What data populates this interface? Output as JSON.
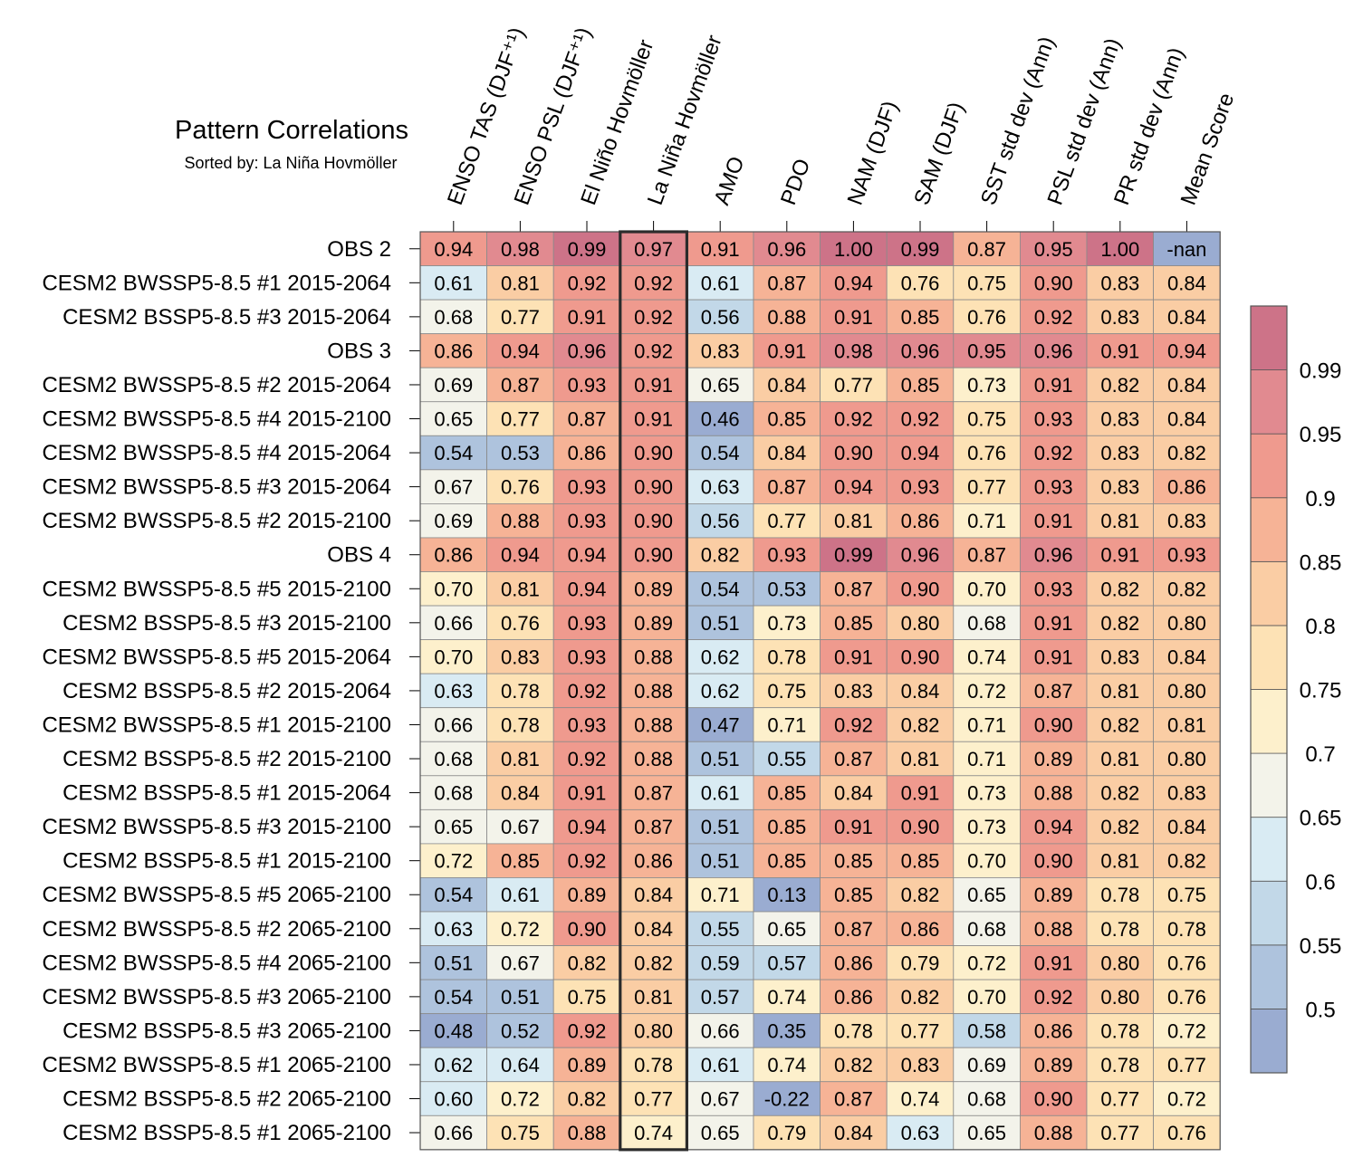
{
  "chart_data": {
    "type": "heatmap",
    "title": "Pattern Correlations",
    "subtitle": "Sorted by: La Niña Hovmöller",
    "highlighted_column": "La Niña Hovmöller",
    "columns": [
      "ENSO TAS (DJF⁺¹)",
      "ENSO PSL (DJF⁺¹)",
      "El Niño Hovmöller",
      "La Niña Hovmöller",
      "AMO",
      "PDO",
      "NAM (DJF)",
      "SAM (DJF)",
      "SST std dev (Ann)",
      "PSL std dev (Ann)",
      "PR std dev (Ann)",
      "Mean Score"
    ],
    "rows": [
      {
        "label": "OBS 2",
        "values": [
          "0.94",
          "0.98",
          "0.99",
          "0.97",
          "0.91",
          "0.96",
          "1.00",
          "0.99",
          "0.87",
          "0.95",
          "1.00",
          "-nan"
        ]
      },
      {
        "label": "CESM2 BWSSP5-8.5 #1 2015-2064",
        "values": [
          "0.61",
          "0.81",
          "0.92",
          "0.92",
          "0.61",
          "0.87",
          "0.94",
          "0.76",
          "0.75",
          "0.90",
          "0.83",
          "0.84"
        ]
      },
      {
        "label": "CESM2 BSSP5-8.5 #3 2015-2064",
        "values": [
          "0.68",
          "0.77",
          "0.91",
          "0.92",
          "0.56",
          "0.88",
          "0.91",
          "0.85",
          "0.76",
          "0.92",
          "0.83",
          "0.84"
        ]
      },
      {
        "label": "OBS 3",
        "values": [
          "0.86",
          "0.94",
          "0.96",
          "0.92",
          "0.83",
          "0.91",
          "0.98",
          "0.96",
          "0.95",
          "0.96",
          "0.91",
          "0.94"
        ]
      },
      {
        "label": "CESM2 BWSSP5-8.5 #2 2015-2064",
        "values": [
          "0.69",
          "0.87",
          "0.93",
          "0.91",
          "0.65",
          "0.84",
          "0.77",
          "0.85",
          "0.73",
          "0.91",
          "0.82",
          "0.84"
        ]
      },
      {
        "label": "CESM2 BWSSP5-8.5 #4 2015-2100",
        "values": [
          "0.65",
          "0.77",
          "0.87",
          "0.91",
          "0.46",
          "0.85",
          "0.92",
          "0.92",
          "0.75",
          "0.93",
          "0.83",
          "0.84"
        ]
      },
      {
        "label": "CESM2 BWSSP5-8.5 #4 2015-2064",
        "values": [
          "0.54",
          "0.53",
          "0.86",
          "0.90",
          "0.54",
          "0.84",
          "0.90",
          "0.94",
          "0.76",
          "0.92",
          "0.83",
          "0.82"
        ]
      },
      {
        "label": "CESM2 BWSSP5-8.5 #3 2015-2064",
        "values": [
          "0.67",
          "0.76",
          "0.93",
          "0.90",
          "0.63",
          "0.87",
          "0.94",
          "0.93",
          "0.77",
          "0.93",
          "0.83",
          "0.86"
        ]
      },
      {
        "label": "CESM2 BWSSP5-8.5 #2 2015-2100",
        "values": [
          "0.69",
          "0.88",
          "0.93",
          "0.90",
          "0.56",
          "0.77",
          "0.81",
          "0.86",
          "0.71",
          "0.91",
          "0.81",
          "0.83"
        ]
      },
      {
        "label": "OBS 4",
        "values": [
          "0.86",
          "0.94",
          "0.94",
          "0.90",
          "0.82",
          "0.93",
          "0.99",
          "0.96",
          "0.87",
          "0.96",
          "0.91",
          "0.93"
        ]
      },
      {
        "label": "CESM2 BWSSP5-8.5 #5 2015-2100",
        "values": [
          "0.70",
          "0.81",
          "0.94",
          "0.89",
          "0.54",
          "0.53",
          "0.87",
          "0.90",
          "0.70",
          "0.93",
          "0.82",
          "0.82"
        ]
      },
      {
        "label": "CESM2 BSSP5-8.5 #3 2015-2100",
        "values": [
          "0.66",
          "0.76",
          "0.93",
          "0.89",
          "0.51",
          "0.73",
          "0.85",
          "0.80",
          "0.68",
          "0.91",
          "0.82",
          "0.80"
        ]
      },
      {
        "label": "CESM2 BWSSP5-8.5 #5 2015-2064",
        "values": [
          "0.70",
          "0.83",
          "0.93",
          "0.88",
          "0.62",
          "0.78",
          "0.91",
          "0.90",
          "0.74",
          "0.91",
          "0.83",
          "0.84"
        ]
      },
      {
        "label": "CESM2 BSSP5-8.5 #2 2015-2064",
        "values": [
          "0.63",
          "0.78",
          "0.92",
          "0.88",
          "0.62",
          "0.75",
          "0.83",
          "0.84",
          "0.72",
          "0.87",
          "0.81",
          "0.80"
        ]
      },
      {
        "label": "CESM2 BWSSP5-8.5 #1 2015-2100",
        "values": [
          "0.66",
          "0.78",
          "0.93",
          "0.88",
          "0.47",
          "0.71",
          "0.92",
          "0.82",
          "0.71",
          "0.90",
          "0.82",
          "0.81"
        ]
      },
      {
        "label": "CESM2 BSSP5-8.5 #2 2015-2100",
        "values": [
          "0.68",
          "0.81",
          "0.92",
          "0.88",
          "0.51",
          "0.55",
          "0.87",
          "0.81",
          "0.71",
          "0.89",
          "0.81",
          "0.80"
        ]
      },
      {
        "label": "CESM2 BSSP5-8.5 #1 2015-2064",
        "values": [
          "0.68",
          "0.84",
          "0.91",
          "0.87",
          "0.61",
          "0.85",
          "0.84",
          "0.91",
          "0.73",
          "0.88",
          "0.82",
          "0.83"
        ]
      },
      {
        "label": "CESM2 BWSSP5-8.5 #3 2015-2100",
        "values": [
          "0.65",
          "0.67",
          "0.94",
          "0.87",
          "0.51",
          "0.85",
          "0.91",
          "0.90",
          "0.73",
          "0.94",
          "0.82",
          "0.84"
        ]
      },
      {
        "label": "CESM2 BSSP5-8.5 #1 2015-2100",
        "values": [
          "0.72",
          "0.85",
          "0.92",
          "0.86",
          "0.51",
          "0.85",
          "0.85",
          "0.85",
          "0.70",
          "0.90",
          "0.81",
          "0.82"
        ]
      },
      {
        "label": "CESM2 BWSSP5-8.5 #5 2065-2100",
        "values": [
          "0.54",
          "0.61",
          "0.89",
          "0.84",
          "0.71",
          "0.13",
          "0.85",
          "0.82",
          "0.65",
          "0.89",
          "0.78",
          "0.75"
        ]
      },
      {
        "label": "CESM2 BWSSP5-8.5 #2 2065-2100",
        "values": [
          "0.63",
          "0.72",
          "0.90",
          "0.84",
          "0.55",
          "0.65",
          "0.87",
          "0.86",
          "0.68",
          "0.88",
          "0.78",
          "0.78"
        ]
      },
      {
        "label": "CESM2 BWSSP5-8.5 #4 2065-2100",
        "values": [
          "0.51",
          "0.67",
          "0.82",
          "0.82",
          "0.59",
          "0.57",
          "0.86",
          "0.79",
          "0.72",
          "0.91",
          "0.80",
          "0.76"
        ]
      },
      {
        "label": "CESM2 BWSSP5-8.5 #3 2065-2100",
        "values": [
          "0.54",
          "0.51",
          "0.75",
          "0.81",
          "0.57",
          "0.74",
          "0.86",
          "0.82",
          "0.70",
          "0.92",
          "0.80",
          "0.76"
        ]
      },
      {
        "label": "CESM2 BSSP5-8.5 #3 2065-2100",
        "values": [
          "0.48",
          "0.52",
          "0.92",
          "0.80",
          "0.66",
          "0.35",
          "0.78",
          "0.77",
          "0.58",
          "0.86",
          "0.78",
          "0.72"
        ]
      },
      {
        "label": "CESM2 BWSSP5-8.5 #1 2065-2100",
        "values": [
          "0.62",
          "0.64",
          "0.89",
          "0.78",
          "0.61",
          "0.74",
          "0.82",
          "0.83",
          "0.69",
          "0.89",
          "0.78",
          "0.77"
        ]
      },
      {
        "label": "CESM2 BSSP5-8.5 #2 2065-2100",
        "values": [
          "0.60",
          "0.72",
          "0.82",
          "0.77",
          "0.67",
          "-0.22",
          "0.87",
          "0.74",
          "0.68",
          "0.90",
          "0.77",
          "0.72"
        ]
      },
      {
        "label": "CESM2 BSSP5-8.5 #1 2065-2100",
        "values": [
          "0.66",
          "0.75",
          "0.88",
          "0.74",
          "0.65",
          "0.79",
          "0.84",
          "0.63",
          "0.65",
          "0.88",
          "0.77",
          "0.76"
        ]
      }
    ],
    "colorbar": {
      "levels": [
        0.5,
        0.55,
        0.6,
        0.65,
        0.7,
        0.75,
        0.8,
        0.85,
        0.9,
        0.95,
        0.99
      ],
      "labels": [
        "0.5",
        "0.55",
        "0.6",
        "0.65",
        "0.7",
        "0.75",
        "0.8",
        "0.85",
        "0.9",
        "0.95",
        "0.99"
      ],
      "colors": [
        "#9aacd1",
        "#aec3dd",
        "#c2d8e8",
        "#d9ebf3",
        "#f3f3ea",
        "#fdf0cc",
        "#fde2b5",
        "#facda4",
        "#f6b396",
        "#ef9a8e",
        "#e18a90",
        "#cd7388"
      ],
      "nan_color": "#9aacd1"
    }
  }
}
